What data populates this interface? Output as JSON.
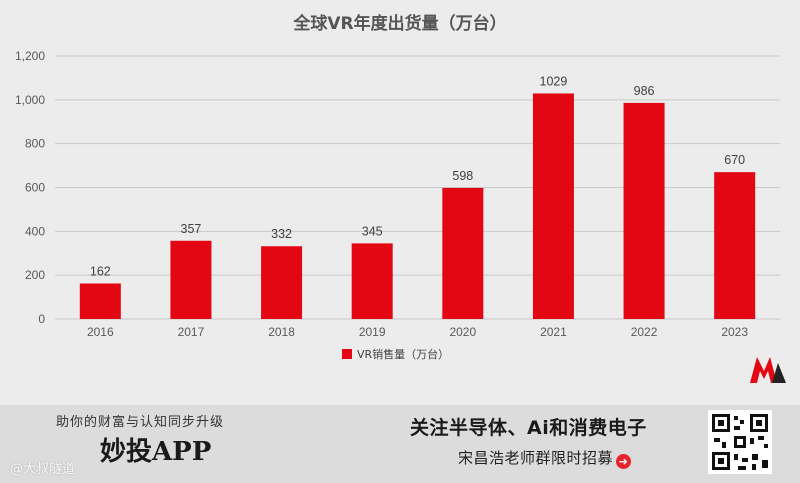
{
  "chart_data": {
    "type": "bar",
    "title": "全球VR年度出货量（万台）",
    "categories": [
      "2016",
      "2017",
      "2018",
      "2019",
      "2020",
      "2021",
      "2022",
      "2023"
    ],
    "series": [
      {
        "name": "VR销售量（万台）",
        "values": [
          162,
          357,
          332,
          345,
          598,
          1029,
          986,
          670
        ]
      }
    ],
    "ylim": [
      0,
      1200
    ],
    "yticks": [
      0,
      200,
      400,
      600,
      800,
      1000,
      1200
    ],
    "ytick_labels": [
      "0",
      "200",
      "400",
      "600",
      "800",
      "1,000",
      "1,200"
    ],
    "grid": true,
    "legend_position": "bottom-center",
    "xlabel": "",
    "ylabel": ""
  },
  "colors": {
    "bar": "#e30613",
    "grid": "#c9c9c9",
    "banner_bg": "#dcdcdc",
    "accent": "#e8242b"
  },
  "banner": {
    "slogan": "助你的财富与认知同步升级",
    "app_name": "妙投APP",
    "headline": "关注半导体、Ai和消费电子",
    "subline": "宋昌浩老师群限时招募",
    "arrow_icon": "right-arrow-icon",
    "qr_icon": "qr-code-icon"
  },
  "watermark": "@大叔隧道"
}
